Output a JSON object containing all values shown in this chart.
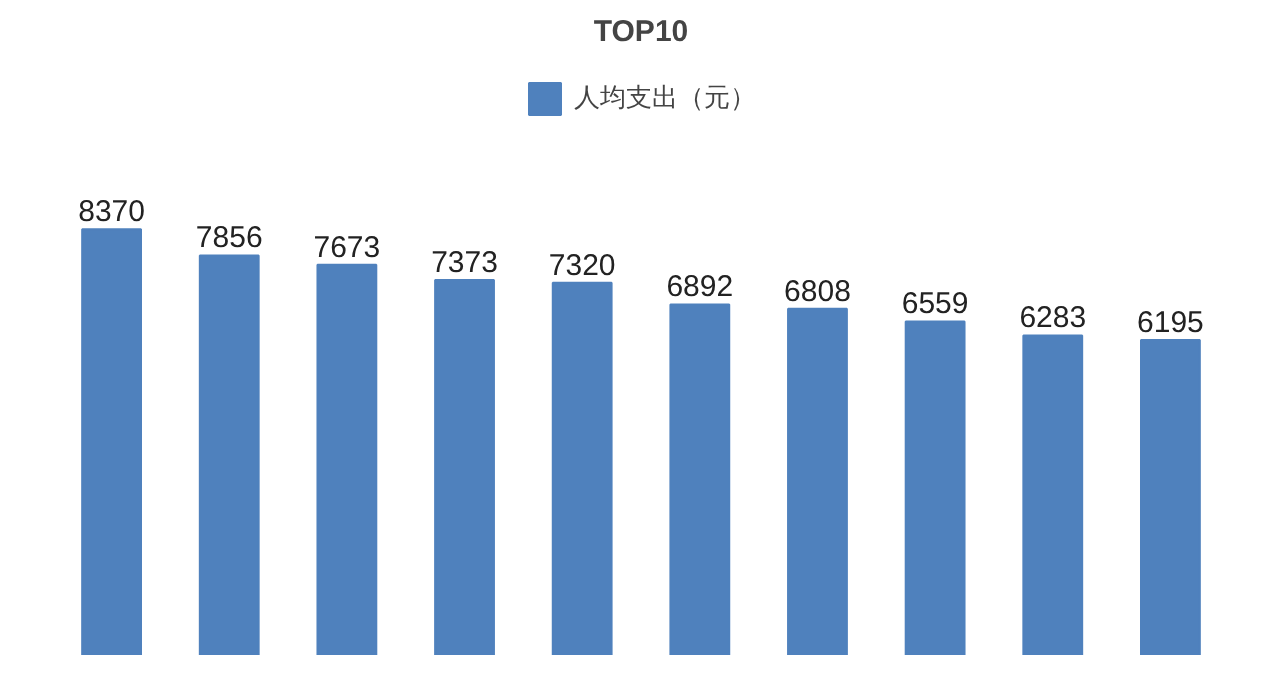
{
  "chart_data": {
    "type": "bar",
    "title": "TOP10",
    "categories": [
      null,
      null,
      null,
      null,
      null,
      null,
      null,
      null,
      null,
      null
    ],
    "series": [
      {
        "name": "人均支出（元）",
        "color": "#4f81bd",
        "values": [
          8370,
          7856,
          7673,
          7373,
          7320,
          6892,
          6808,
          6559,
          6283,
          6195
        ]
      }
    ],
    "data_labels": true,
    "legend": "top",
    "tick_labels": false,
    "grid": false
  }
}
